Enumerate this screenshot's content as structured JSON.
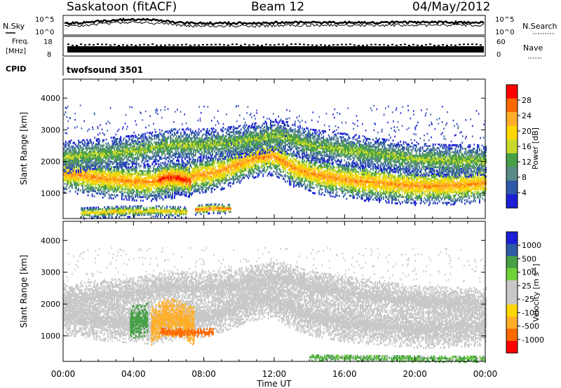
{
  "header": {
    "station": "Saskatoon (fitACF)",
    "beam": "Beam 12",
    "date": "04/May/2012"
  },
  "panels": {
    "sky_label": "N.Sky",
    "search_label": "N.Search",
    "freq_label_1": "Freq.",
    "freq_label_2": "[MHz]",
    "nave_label": "Nave",
    "cpid_label": "CPID",
    "cpid_value": "twofsound 3501",
    "sky_ticks_left": [
      "10^5",
      "10^0"
    ],
    "sky_ticks_right": [
      "10^5",
      "10^0"
    ],
    "freq_ticks": [
      "18",
      "8"
    ],
    "nave_ticks": [
      "60",
      "0"
    ]
  },
  "chart_data": [
    {
      "type": "heatmap",
      "name": "power",
      "ylabel": "Slant Range [km]",
      "xlabel": "",
      "y_ticks": [
        "1000",
        "2000",
        "3000",
        "4000"
      ],
      "ylim": [
        200,
        4600
      ],
      "xlim": [
        0,
        24
      ],
      "colorbar_label": "Power [dB]",
      "colorbar_ticks": [
        "28",
        "24",
        "20",
        "16",
        "12",
        "8",
        "4"
      ],
      "colorbar_colors": [
        "#ff0000",
        "#ff6a00",
        "#ffae2a",
        "#ffd700",
        "#c8d92a",
        "#48a046",
        "#5a8a88",
        "#2e5aa8",
        "#1d1fd6"
      ],
      "bands": [
        {
          "t": [
            0,
            1,
            2,
            3,
            4,
            5,
            6,
            7,
            8,
            9,
            10,
            11,
            12,
            13,
            14,
            15,
            16,
            17,
            18,
            19,
            20,
            21,
            22,
            23,
            24
          ],
          "r": [
            1600,
            1550,
            1450,
            1400,
            1350,
            1330,
            1400,
            1500,
            1550,
            1700,
            1900,
            2100,
            2150,
            1800,
            1600,
            1500,
            1400,
            1350,
            1300,
            1250,
            1200,
            1200,
            1220,
            1250,
            1300
          ],
          "width": 600,
          "peak": 24
        },
        {
          "t": [
            0,
            2,
            4,
            6,
            8,
            10,
            12,
            13,
            14,
            16,
            18,
            20,
            22,
            24
          ],
          "r": [
            2100,
            2200,
            2300,
            2500,
            2500,
            2600,
            2800,
            2700,
            2500,
            2350,
            2200,
            2050,
            2000,
            2000
          ],
          "width": 500,
          "peak": 14
        },
        {
          "t": [
            5.4,
            6.0,
            6.6,
            7.2
          ],
          "r": [
            1400,
            1500,
            1450,
            1350
          ],
          "width": 500,
          "peak": 30
        },
        {
          "t": [
            7.5,
            8.5,
            9.5
          ],
          "r": [
            450,
            500,
            480
          ],
          "width": 150,
          "peak": 28
        },
        {
          "t": [
            1,
            3,
            5,
            7
          ],
          "r": [
            350,
            400,
            420,
            380
          ],
          "width": 180,
          "peak": 20
        }
      ]
    },
    {
      "type": "heatmap",
      "name": "velocity",
      "ylabel": "Slant Range [km]",
      "xlabel": "Time UT",
      "x_ticks": [
        "00:00",
        "04:00",
        "08:00",
        "12:00",
        "16:00",
        "20:00",
        "00:00"
      ],
      "y_ticks": [
        "1000",
        "2000",
        "3000",
        "4000"
      ],
      "ylim": [
        200,
        4600
      ],
      "xlim": [
        0,
        24
      ],
      "colorbar_label": "Velocity [m s^-1]",
      "colorbar_ticks": [
        "1000",
        "500",
        "100",
        "25",
        "-25",
        "-100",
        "-500",
        "-1000"
      ],
      "colorbar_colors": [
        "#1d1fd6",
        "#2e5aa8",
        "#48a046",
        "#6dd13a",
        "#c8c8c8",
        "#c8c8c8",
        "#ffd700",
        "#ffae2a",
        "#ff6a00",
        "#ff0000"
      ],
      "bands": [
        {
          "t": [
            0,
            1,
            2,
            3,
            4,
            5,
            6,
            7,
            8,
            9,
            10,
            11,
            12,
            13,
            14,
            15,
            16,
            17,
            18,
            19,
            20,
            21,
            22,
            23,
            24
          ],
          "r": [
            1600,
            1550,
            1450,
            1400,
            1350,
            1330,
            1400,
            1500,
            1550,
            1700,
            1900,
            2100,
            2150,
            1800,
            1600,
            1500,
            1400,
            1350,
            1300,
            1250,
            1200,
            1200,
            1220,
            1250,
            1300
          ],
          "width": 600,
          "v": 0
        },
        {
          "t": [
            0,
            2,
            4,
            6,
            8,
            10,
            12,
            13,
            14,
            16,
            18,
            20,
            22,
            24
          ],
          "r": [
            2100,
            2200,
            2300,
            2500,
            2500,
            2600,
            2800,
            2700,
            2500,
            2350,
            2200,
            2050,
            2000,
            2000
          ],
          "width": 500,
          "v": 0
        },
        {
          "t": [
            5.0,
            5.8,
            6.6,
            7.4
          ],
          "r": [
            1300,
            1600,
            1500,
            1300
          ],
          "width": 600,
          "v": -150
        },
        {
          "t": [
            3.8,
            4.8
          ],
          "r": [
            1400,
            1500
          ],
          "width": 500,
          "v": 200
        },
        {
          "t": [
            5.5,
            7.0,
            8.5
          ],
          "r": [
            1100,
            1080,
            1100
          ],
          "width": 120,
          "v": -400
        },
        {
          "t": [
            14,
            18,
            22,
            24
          ],
          "r": [
            300,
            280,
            260,
            260
          ],
          "width": 100,
          "v": 60
        }
      ]
    }
  ]
}
